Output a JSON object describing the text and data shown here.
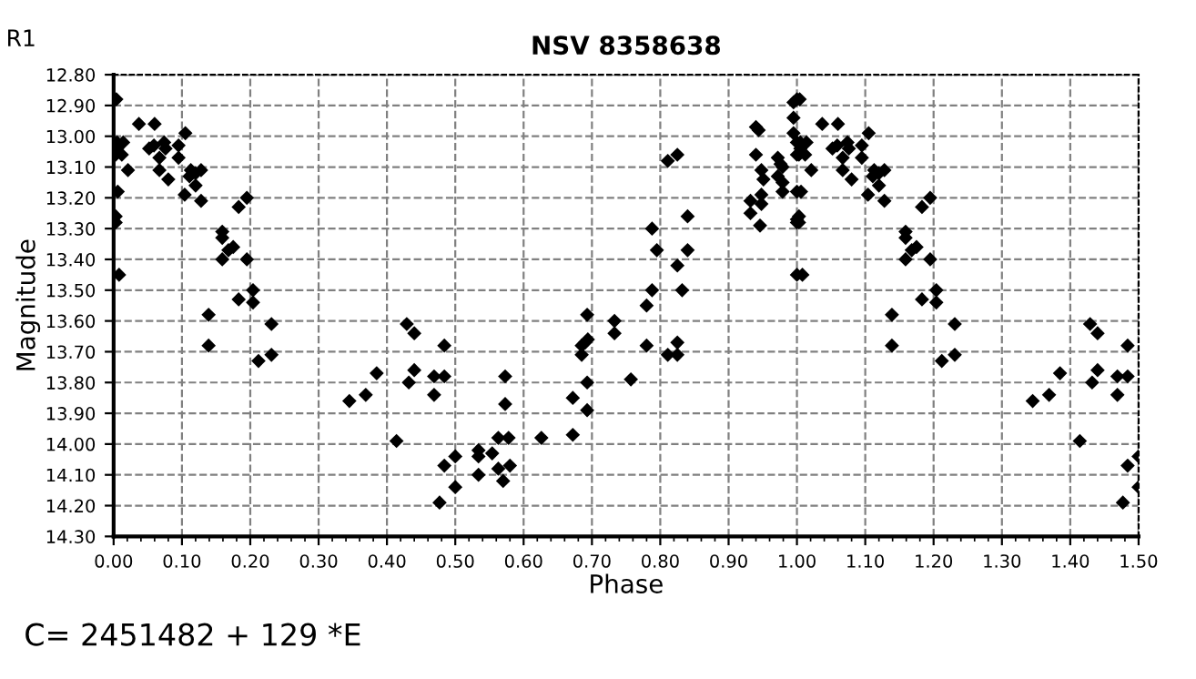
{
  "chart_data": {
    "type": "scatter",
    "title": "NSV 8358638",
    "xlabel": "Phase",
    "ylabel": "Magnitude",
    "annotations": [
      "R1",
      "C= 2451482 + 129 *E"
    ],
    "marker": "diamond",
    "grid": true,
    "line_style": "dashed",
    "xlim": [
      0,
      1.5
    ],
    "ylim": [
      14.3,
      12.8
    ],
    "xticks": [
      {
        "value": 0,
        "label": "0.00"
      },
      {
        "value": 0.1,
        "label": "0.10"
      },
      {
        "value": 0.2,
        "label": "0.20"
      },
      {
        "value": 0.3,
        "label": "0.30"
      },
      {
        "value": 0.4,
        "label": "0.40"
      },
      {
        "value": 0.5,
        "label": "0.50"
      },
      {
        "value": 0.6,
        "label": "0.60"
      },
      {
        "value": 0.7,
        "label": "0.70"
      },
      {
        "value": 0.8,
        "label": "0.80"
      },
      {
        "value": 0.9,
        "label": "0.90"
      },
      {
        "value": 1.0,
        "label": "1.00"
      },
      {
        "value": 1.1,
        "label": "1.10"
      },
      {
        "value": 1.2,
        "label": "1.20"
      },
      {
        "value": 1.3,
        "label": "1.30"
      },
      {
        "value": 1.4,
        "label": "1.40"
      },
      {
        "value": 1.5,
        "label": "1.50"
      }
    ],
    "yticks": [
      {
        "value": 12.8,
        "label": "12.80"
      },
      {
        "value": 12.9,
        "label": "12.90"
      },
      {
        "value": 13.0,
        "label": "13.00"
      },
      {
        "value": 13.1,
        "label": "13.10"
      },
      {
        "value": 13.2,
        "label": "13.20"
      },
      {
        "value": 13.3,
        "label": "13.30"
      },
      {
        "value": 13.4,
        "label": "13.40"
      },
      {
        "value": 13.5,
        "label": "13.50"
      },
      {
        "value": 13.6,
        "label": "13.60"
      },
      {
        "value": 13.7,
        "label": "13.70"
      },
      {
        "value": 13.8,
        "label": "13.80"
      },
      {
        "value": 13.9,
        "label": "13.90"
      },
      {
        "value": 14.0,
        "label": "14.00"
      },
      {
        "value": 14.1,
        "label": "14.10"
      },
      {
        "value": 14.2,
        "label": "14.20"
      },
      {
        "value": 14.3,
        "label": "14.30"
      }
    ],
    "series": [
      {
        "color": "#000000",
        "x": [
          0.004,
          0.037,
          0.06,
          0.105,
          0.005,
          0.014,
          0.005,
          0.012,
          0.003,
          0.052,
          0.059,
          0.074,
          0.076,
          0.095,
          0.095,
          0.067,
          0.021,
          0.067,
          0.08,
          0.113,
          0.111,
          0.12,
          0.128,
          0.12,
          0.104,
          0.128,
          0.006,
          0.003,
          0.003,
          0.183,
          0.195,
          0.159,
          0.159,
          0.168,
          0.175,
          0.159,
          0.195,
          0.008,
          0.183,
          0.204,
          0.204,
          0.139,
          0.139,
          0.231,
          0.212,
          0.231,
          0.345,
          0.369,
          0.385,
          0.414,
          0.429,
          0.44,
          0.432,
          0.44,
          0.469,
          0.469,
          0.484,
          0.484,
          0.484,
          0.5,
          0.5,
          0.477,
          0.534,
          0.534,
          0.534,
          0.554,
          0.563,
          0.578,
          0.563,
          0.58,
          0.57,
          0.573,
          0.573,
          0.626,
          0.672,
          0.672,
          0.685,
          0.685,
          0.69,
          0.694,
          0.693,
          0.693,
          0.693,
          0.733,
          0.733,
          0.757,
          0.78,
          0.78,
          0.788,
          0.795,
          0.788,
          0.811,
          0.825,
          0.825,
          0.832,
          0.825,
          0.84,
          0.84,
          0.811,
          0.825,
          0.932,
          0.932,
          0.946,
          0.948,
          0.948,
          0.94,
          0.944,
          0.94,
          0.948,
          0.951,
          0.972,
          0.976,
          0.979,
          0.972,
          0.979,
          0.979,
          0.995,
          1.0,
          0.995,
          0.995,
          1.0,
          1.0,
          1.0,
          1.0,
          1.0,
          1.0,
          1.004,
          1.037,
          1.06,
          1.105,
          1.005,
          1.014,
          1.005,
          1.012,
          1.003,
          1.052,
          1.059,
          1.074,
          1.076,
          1.095,
          1.095,
          1.067,
          1.021,
          1.067,
          1.08,
          1.113,
          1.111,
          1.12,
          1.128,
          1.12,
          1.104,
          1.128,
          1.006,
          1.003,
          1.003,
          1.183,
          1.195,
          1.159,
          1.159,
          1.168,
          1.175,
          1.159,
          1.195,
          1.008,
          1.183,
          1.204,
          1.204,
          1.139,
          1.139,
          1.231,
          1.212,
          1.231,
          1.345,
          1.369,
          1.385,
          1.414,
          1.429,
          1.44,
          1.432,
          1.44,
          1.469,
          1.469,
          1.484,
          1.484,
          1.484,
          1.5,
          1.5,
          1.477
        ],
        "values": [
          12.88,
          12.96,
          12.96,
          12.99,
          13.02,
          13.02,
          13.04,
          13.06,
          13.06,
          13.04,
          13.03,
          13.02,
          13.04,
          13.03,
          13.07,
          13.07,
          13.11,
          13.11,
          13.14,
          13.11,
          13.13,
          13.12,
          13.11,
          13.16,
          13.19,
          13.21,
          13.18,
          13.26,
          13.28,
          13.23,
          13.2,
          13.31,
          13.33,
          13.37,
          13.36,
          13.4,
          13.4,
          13.45,
          13.53,
          13.5,
          13.54,
          13.58,
          13.68,
          13.61,
          13.73,
          13.71,
          13.86,
          13.84,
          13.77,
          13.99,
          13.61,
          13.64,
          13.8,
          13.76,
          13.78,
          13.84,
          13.78,
          13.68,
          14.07,
          14.04,
          14.14,
          14.19,
          14.02,
          14.04,
          14.1,
          14.03,
          13.98,
          13.98,
          14.08,
          14.07,
          14.12,
          13.78,
          13.87,
          13.98,
          13.85,
          13.97,
          13.71,
          13.68,
          13.67,
          13.66,
          13.58,
          13.8,
          13.89,
          13.6,
          13.64,
          13.79,
          13.55,
          13.68,
          13.5,
          13.37,
          13.3,
          13.71,
          13.71,
          13.67,
          13.5,
          13.42,
          13.37,
          13.26,
          13.08,
          13.06,
          13.21,
          13.25,
          13.29,
          13.22,
          13.19,
          12.97,
          12.98,
          13.06,
          13.11,
          13.14,
          13.07,
          13.09,
          13.1,
          13.13,
          13.15,
          13.18,
          12.89,
          12.88,
          12.94,
          12.99,
          13.02,
          13.06,
          13.18,
          13.27,
          13.28,
          13.45,
          12.88,
          12.96,
          12.96,
          12.99,
          13.02,
          13.02,
          13.04,
          13.06,
          13.06,
          13.04,
          13.03,
          13.02,
          13.04,
          13.03,
          13.07,
          13.07,
          13.11,
          13.11,
          13.14,
          13.11,
          13.13,
          13.12,
          13.11,
          13.16,
          13.19,
          13.21,
          13.18,
          13.26,
          13.28,
          13.23,
          13.2,
          13.31,
          13.33,
          13.37,
          13.36,
          13.4,
          13.4,
          13.45,
          13.53,
          13.5,
          13.54,
          13.58,
          13.68,
          13.61,
          13.73,
          13.71,
          13.86,
          13.84,
          13.77,
          13.99,
          13.61,
          13.64,
          13.8,
          13.76,
          13.78,
          13.84,
          13.78,
          13.68,
          14.07,
          14.04,
          14.14,
          14.19
        ]
      }
    ]
  }
}
